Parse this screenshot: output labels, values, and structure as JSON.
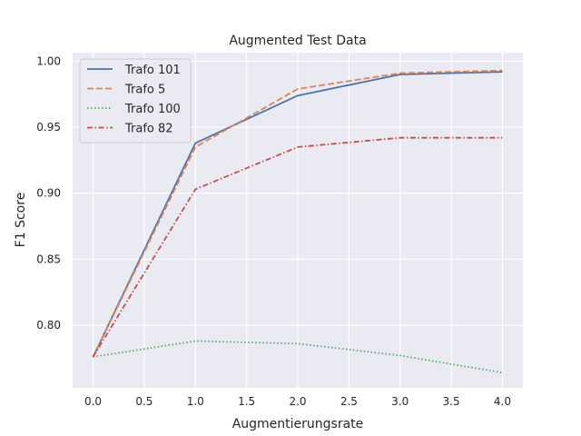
{
  "chart_data": {
    "type": "line",
    "title": "Augmented Test Data",
    "xlabel": "Augmentierungsrate",
    "ylabel": "F1 Score",
    "x": [
      0,
      1,
      2,
      3,
      4
    ],
    "xlim": [
      -0.2,
      4.2
    ],
    "ylim": [
      0.7525,
      1.0065
    ],
    "xticks": [
      0.0,
      0.5,
      1.0,
      1.5,
      2.0,
      2.5,
      3.0,
      3.5,
      4.0
    ],
    "xtick_labels": [
      "0.0",
      "0.5",
      "1.0",
      "1.5",
      "2.0",
      "2.5",
      "3.0",
      "3.5",
      "4.0"
    ],
    "yticks": [
      0.8,
      0.85,
      0.9,
      0.95,
      1.0
    ],
    "ytick_labels": [
      "0.80",
      "0.85",
      "0.90",
      "0.95",
      "1.00"
    ],
    "grid": true,
    "legend_position": "top-left",
    "background_color": "#eaeaf2",
    "series": [
      {
        "name": "Trafo 101",
        "style": "solid",
        "color": "#4c72b0",
        "values": [
          0.776,
          0.938,
          0.974,
          0.99,
          0.992
        ]
      },
      {
        "name": "Trafo 5",
        "style": "dashed",
        "color": "#dd8452",
        "values": [
          0.776,
          0.935,
          0.979,
          0.991,
          0.993
        ]
      },
      {
        "name": "Trafo 100",
        "style": "dotted",
        "color": "#55a868",
        "values": [
          0.776,
          0.788,
          0.786,
          0.777,
          0.764
        ]
      },
      {
        "name": "Trafo 82",
        "style": "dashdot",
        "color": "#c44e52",
        "values": [
          0.776,
          0.903,
          0.935,
          0.942,
          0.942
        ]
      }
    ]
  }
}
